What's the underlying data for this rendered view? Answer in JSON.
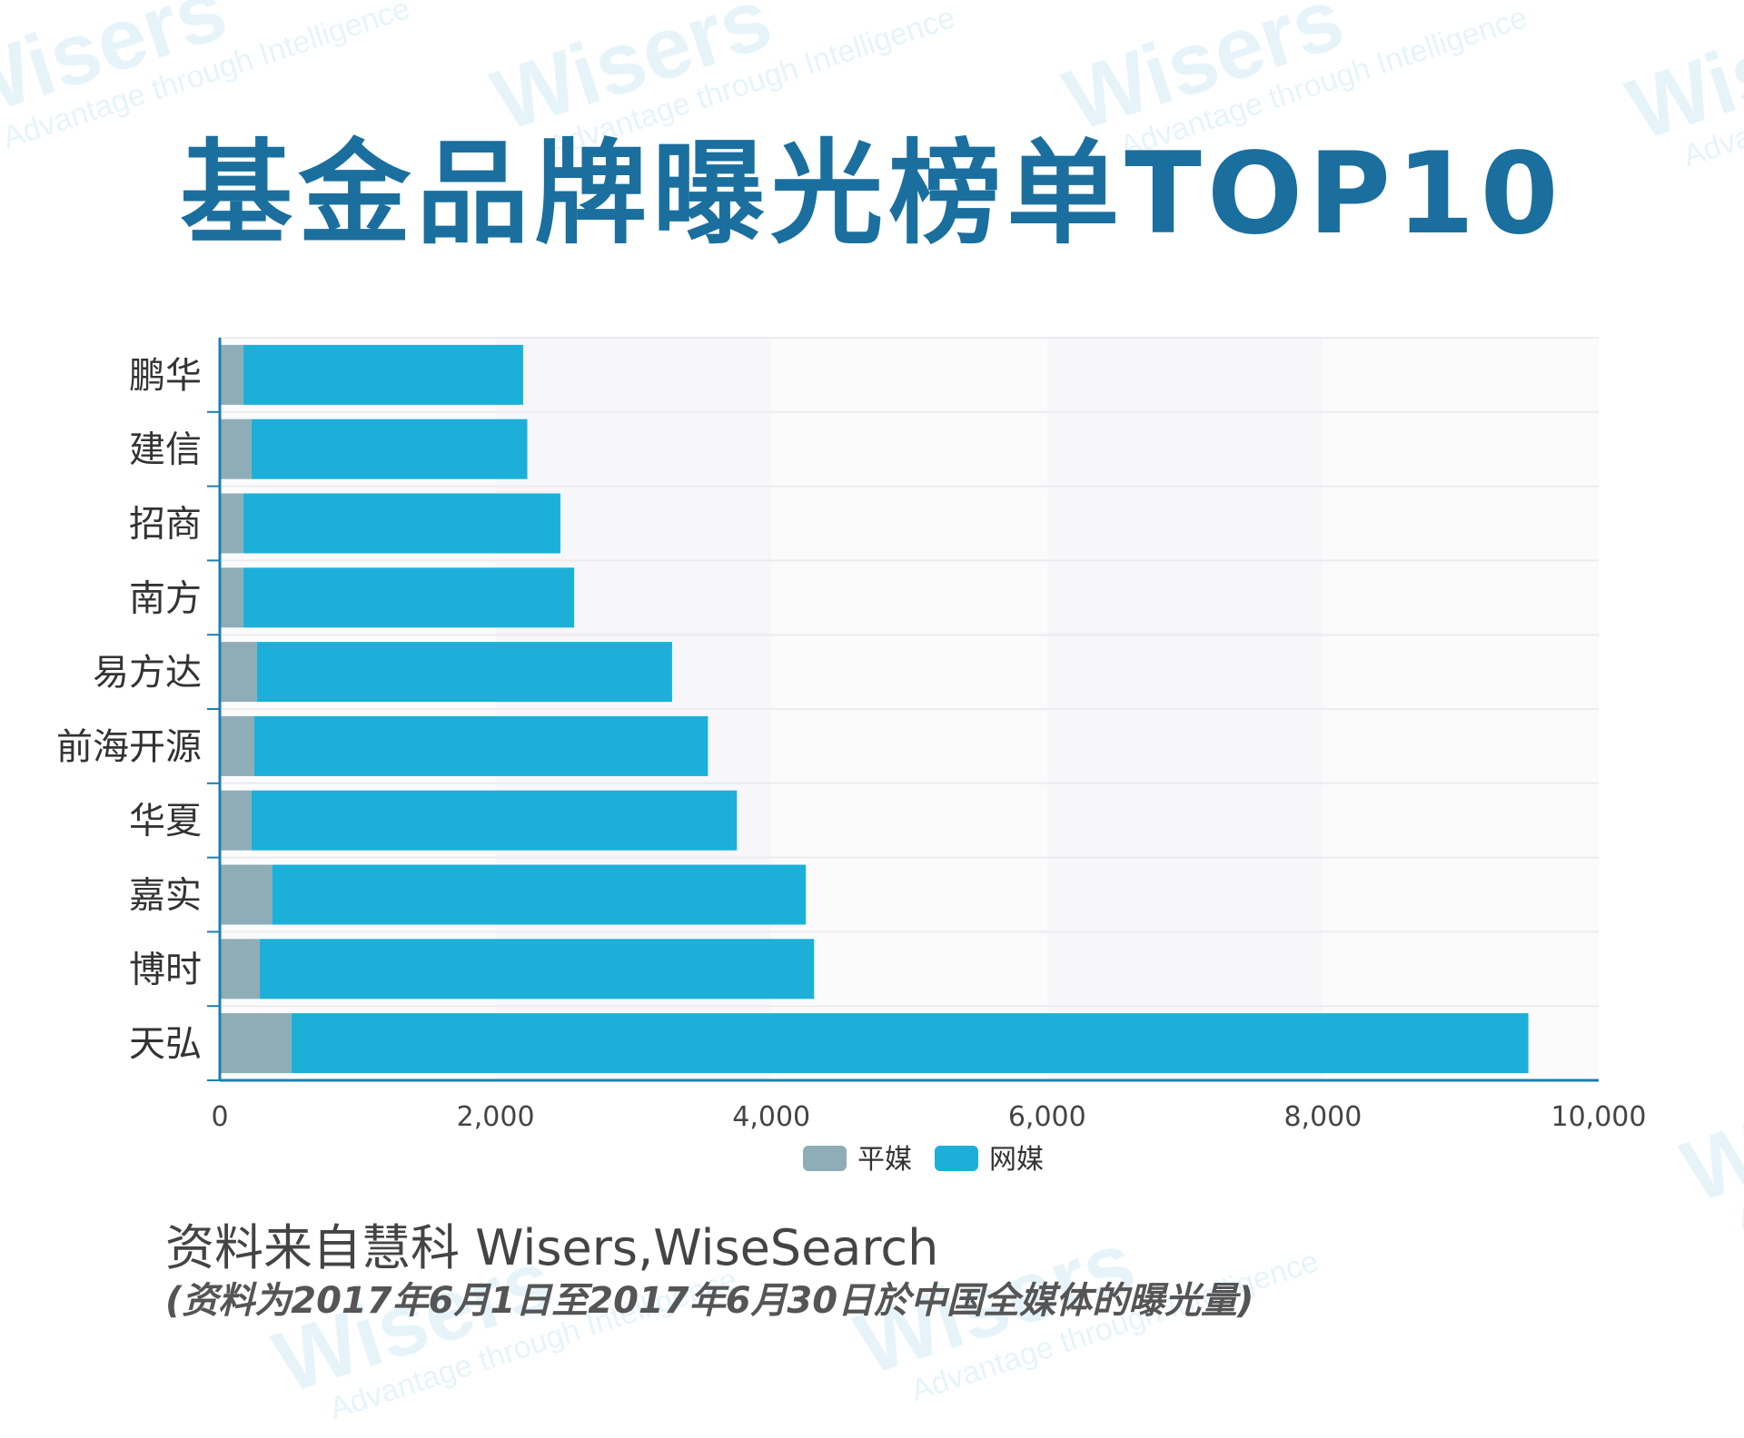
{
  "title": "基金品牌曝光榜单TOP10",
  "watermark": {
    "brand": "Wisers",
    "tagline": "Advantage through Intelligence"
  },
  "chart_data": {
    "type": "bar",
    "orientation": "horizontal",
    "stacked": true,
    "categories": [
      "鹏华",
      "建信",
      "招商",
      "南方",
      "易方达",
      "前海开源",
      "华夏",
      "嘉实",
      "博时",
      "天弘"
    ],
    "series": [
      {
        "name": "平媒",
        "color": "#8fadb7",
        "values": [
          170,
          230,
          170,
          170,
          270,
          250,
          230,
          380,
          290,
          520
        ]
      },
      {
        "name": "网媒",
        "color": "#1cb0d9",
        "values": [
          2030,
          2000,
          2300,
          2400,
          3010,
          3290,
          3520,
          3870,
          4020,
          8970
        ]
      }
    ],
    "xlim": [
      0,
      10000
    ],
    "xticks": [
      "0",
      "2,000",
      "4,000",
      "6,000",
      "8,000",
      "10,000"
    ],
    "legend_position": "bottom-center",
    "grid": true
  },
  "source": "资料来自慧科 Wisers,WiseSearch",
  "note": "(资料为2017年6月1日至2017年6月30日於中国全媒体的曝光量)"
}
